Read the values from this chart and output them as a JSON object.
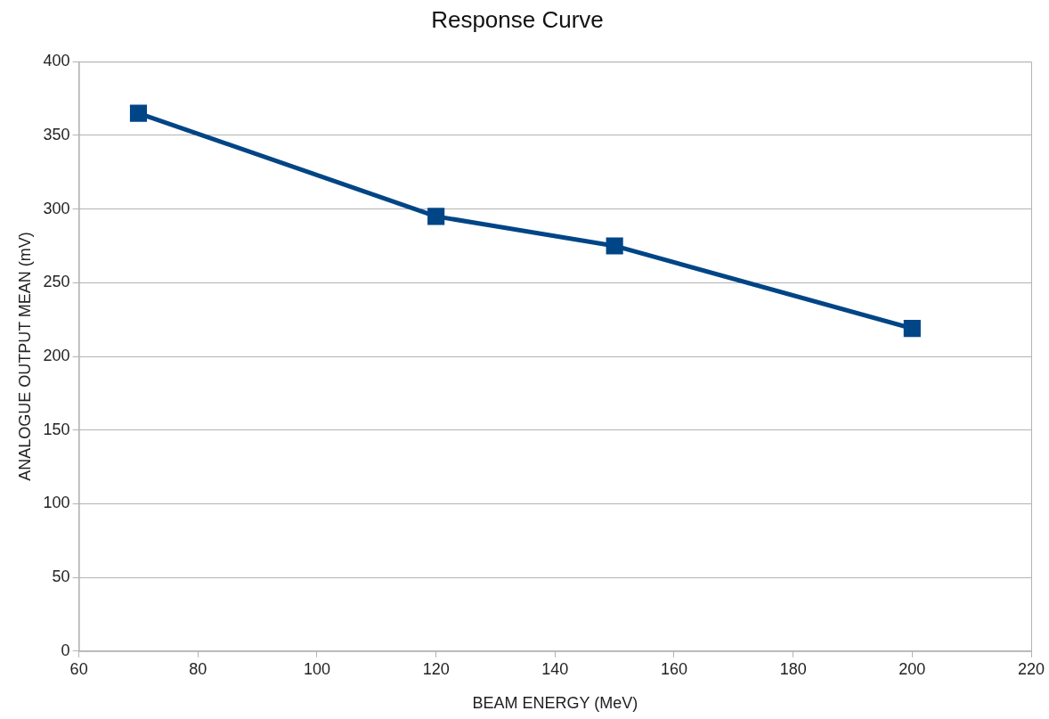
{
  "chart_data": {
    "type": "line",
    "title": "Response Curve",
    "xlabel": "BEAM ENERGY (MeV)",
    "ylabel": "ANALOGUE OUTPUT MEAN (mV)",
    "x": [
      70,
      120,
      150,
      200
    ],
    "series": [
      {
        "color": "#004586",
        "values": [
          365,
          295,
          275,
          219
        ]
      }
    ],
    "xlim": [
      60,
      220
    ],
    "xticks": [
      60,
      80,
      100,
      120,
      140,
      160,
      180,
      200,
      220
    ],
    "ylim": [
      0,
      400
    ],
    "yticks": [
      0,
      50,
      100,
      150,
      200,
      250,
      300,
      350,
      400
    ],
    "grid": "y",
    "legend": false,
    "marker": "square",
    "line_style": "solid"
  }
}
